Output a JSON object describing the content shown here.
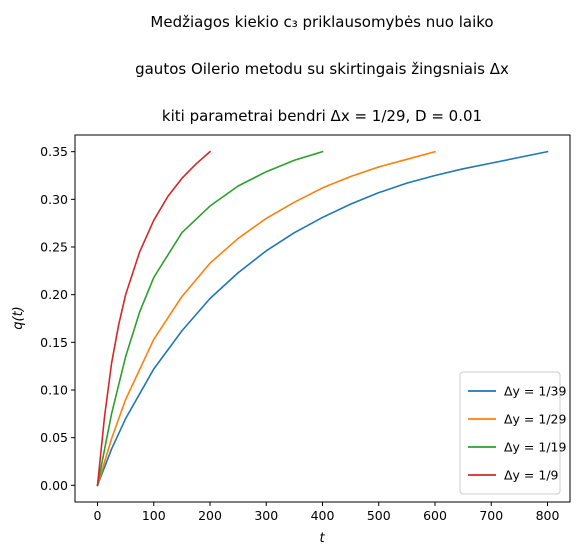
{
  "chart_data": {
    "type": "line",
    "title_lines": [
      "Medžiagos kiekio c₃ priklausomybės nuo laiko",
      "gautos Oilerio metodu su skirtingais žingsniais Δx",
      "kiti parametrai bendri Δx = 1/29, D = 0.01"
    ],
    "xlabel": "t",
    "ylabel": "q(t)",
    "xlim": [
      -40,
      840
    ],
    "ylim": [
      -0.0175,
      0.3675
    ],
    "xticks": [
      0,
      100,
      200,
      300,
      400,
      500,
      600,
      700,
      800
    ],
    "xtick_labels": [
      "0",
      "100",
      "200",
      "300",
      "400",
      "500",
      "600",
      "700",
      "800"
    ],
    "yticks": [
      0.0,
      0.05,
      0.1,
      0.15,
      0.2,
      0.25,
      0.3,
      0.35
    ],
    "ytick_labels": [
      "0.00",
      "0.05",
      "0.10",
      "0.15",
      "0.20",
      "0.25",
      "0.30",
      "0.35"
    ],
    "grid": false,
    "legend_position": "lower-right",
    "series": [
      {
        "name": "Δy = 1/39",
        "color": "#1f77b4",
        "x": [
          0,
          25,
          50,
          100,
          150,
          200,
          250,
          300,
          350,
          400,
          450,
          500,
          550,
          600,
          650,
          700,
          750,
          800
        ],
        "y": [
          0,
          0.038,
          0.07,
          0.122,
          0.162,
          0.196,
          0.223,
          0.246,
          0.265,
          0.281,
          0.295,
          0.307,
          0.317,
          0.325,
          0.332,
          0.338,
          0.344,
          0.35
        ]
      },
      {
        "name": "Δy = 1/29",
        "color": "#ff7f0e",
        "x": [
          0,
          25,
          50,
          100,
          150,
          200,
          250,
          300,
          350,
          400,
          450,
          500,
          550,
          600
        ],
        "y": [
          0,
          0.049,
          0.09,
          0.153,
          0.198,
          0.233,
          0.259,
          0.28,
          0.297,
          0.312,
          0.324,
          0.334,
          0.342,
          0.35
        ]
      },
      {
        "name": "Δy = 1/19",
        "color": "#2ca02c",
        "x": [
          0,
          25,
          50,
          75,
          100,
          150,
          200,
          250,
          300,
          350,
          400
        ],
        "y": [
          0,
          0.075,
          0.135,
          0.182,
          0.218,
          0.265,
          0.293,
          0.314,
          0.329,
          0.341,
          0.35
        ]
      },
      {
        "name": "Δy = 1/9",
        "color": "#d62728",
        "x": [
          0,
          12.5,
          25,
          37.5,
          50,
          75,
          100,
          125,
          150,
          175,
          200
        ],
        "y": [
          0,
          0.072,
          0.128,
          0.168,
          0.2,
          0.245,
          0.278,
          0.303,
          0.322,
          0.337,
          0.35
        ]
      }
    ]
  }
}
